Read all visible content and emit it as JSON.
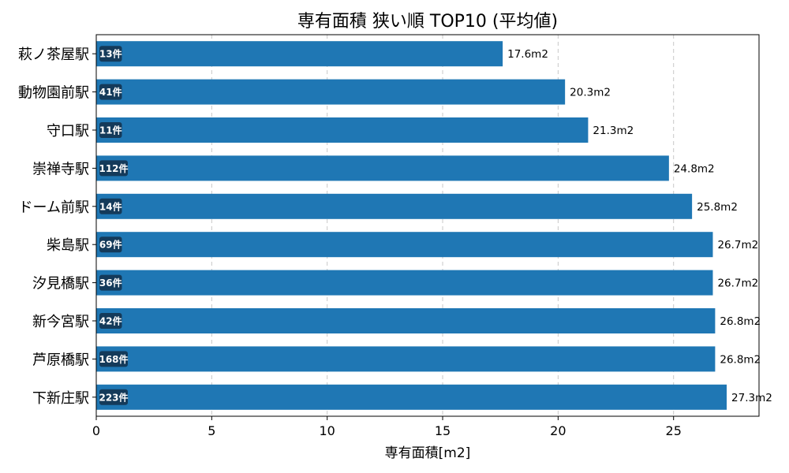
{
  "chart_data": {
    "type": "bar",
    "orientation": "horizontal",
    "title": "専有面積 狭い順 TOP10 (平均値)",
    "xlabel": "専有面積[m2]",
    "ylabel": "",
    "xlim": [
      0,
      28.7
    ],
    "xticks": [
      0,
      5,
      10,
      15,
      20,
      25
    ],
    "grid": "vertical-dashed",
    "categories": [
      "萩ノ茶屋駅",
      "動物園前駅",
      "守口駅",
      "崇禅寺駅",
      "ドーム前駅",
      "柴島駅",
      "汐見橋駅",
      "新今宮駅",
      "芦原橋駅",
      "下新庄駅"
    ],
    "values": [
      17.6,
      20.3,
      21.3,
      24.8,
      25.8,
      26.7,
      26.7,
      26.8,
      26.8,
      27.3
    ],
    "value_labels": [
      "17.6m2",
      "20.3m2",
      "21.3m2",
      "24.8m2",
      "25.8m2",
      "26.7m2",
      "26.7m2",
      "26.8m2",
      "26.8m2",
      "27.3m2"
    ],
    "count_labels": [
      "13件",
      "41件",
      "11件",
      "112件",
      "14件",
      "69件",
      "36件",
      "42件",
      "168件",
      "223件"
    ],
    "bar_color": "#1f77b4",
    "badge_color": "#143a5a"
  }
}
